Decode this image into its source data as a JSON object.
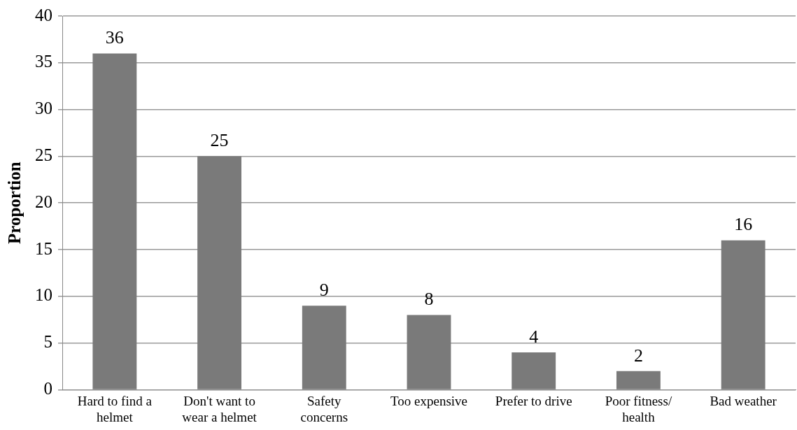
{
  "chart_data": {
    "type": "bar",
    "ylabel": "Proportion",
    "categories": [
      "Hard to find a helmet",
      "Don't want to wear a helmet",
      "Safety concerns",
      "Too expensive",
      "Prefer to drive",
      "Poor fitness/ health",
      "Bad weather"
    ],
    "values": [
      36,
      25,
      9,
      8,
      4,
      2,
      16
    ],
    "color": "#7a7a7a",
    "ylim": [
      0,
      40
    ],
    "yticks": [
      0,
      5,
      10,
      15,
      20,
      25,
      30,
      35,
      40
    ],
    "grid": "y",
    "legend": false,
    "data_labels": true
  }
}
